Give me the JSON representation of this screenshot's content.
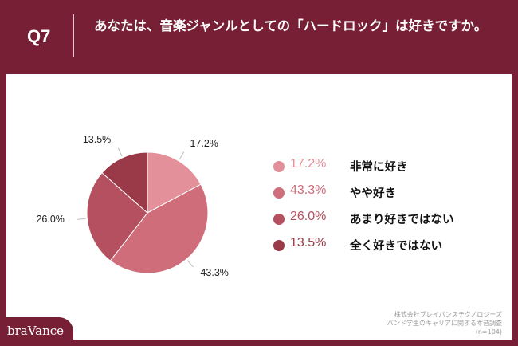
{
  "header": {
    "q_number": "Q7",
    "question": "あなたは、音楽ジャンルとしての「ハードロック」は好きですか。"
  },
  "chart_data": {
    "type": "pie",
    "slices": [
      {
        "label": "非常に好き",
        "value": 17.2,
        "display": "17.2%",
        "color": "#e3909a"
      },
      {
        "label": "やや好き",
        "value": 43.3,
        "display": "43.3%",
        "color": "#d06d7a"
      },
      {
        "label": "あまり好きではない",
        "value": 26.0,
        "display": "26.0%",
        "color": "#b4505f"
      },
      {
        "label": "全く好きではない",
        "value": 13.5,
        "display": "13.5%",
        "color": "#9a3a48"
      }
    ],
    "start": "top",
    "direction": "clockwise",
    "legend_position": "right"
  },
  "source": {
    "company": "株式会社ブレイバンステクノロジーズ",
    "survey": "バンド学生のキャリアに関する本音調査",
    "sample": "(n=104)"
  },
  "brand": {
    "name": "braVance"
  }
}
